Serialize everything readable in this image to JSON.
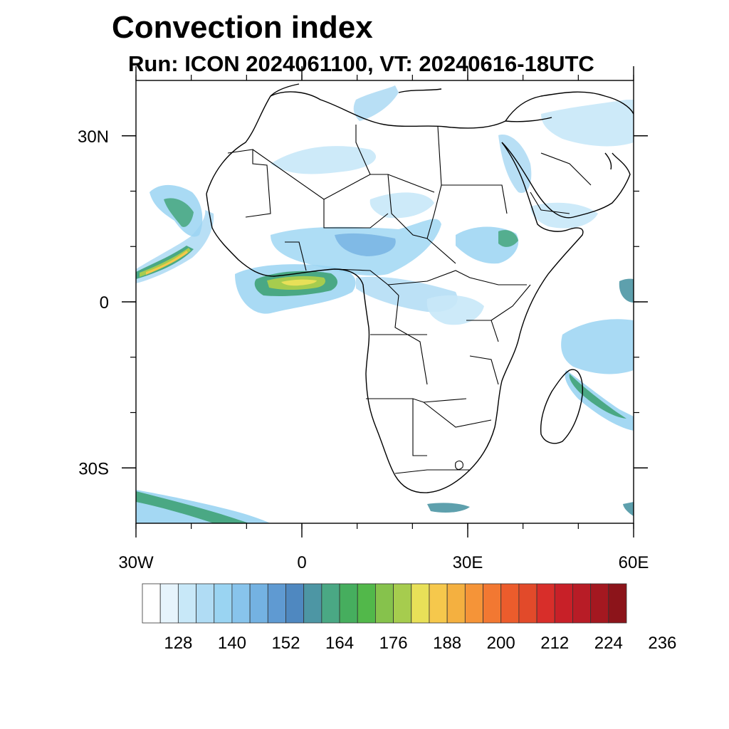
{
  "title": "Convection index",
  "subtitle": "Run: ICON 2024061100,  VT: 20240616-18UTC",
  "map": {
    "region": "Africa and surrounding oceans",
    "lon_range": [
      -30,
      60
    ],
    "lat_range": [
      -40,
      40
    ],
    "x_ticks": [
      {
        "value": -30,
        "label": "30W"
      },
      {
        "value": 0,
        "label": "0"
      },
      {
        "value": 30,
        "label": "30E"
      },
      {
        "value": 60,
        "label": "60E"
      }
    ],
    "y_ticks": [
      {
        "value": 30,
        "label": "30N"
      },
      {
        "value": 0,
        "label": "0"
      },
      {
        "value": -30,
        "label": "30S"
      }
    ],
    "minor_x_step": 10,
    "minor_y_step": 10
  },
  "colorbar": {
    "labels": [
      "128",
      "140",
      "152",
      "164",
      "176",
      "188",
      "200",
      "212",
      "224",
      "236"
    ],
    "colors": [
      "#ffffff",
      "#e6f4fc",
      "#c8e8f8",
      "#b0dcf4",
      "#9ad4f2",
      "#88c4ec",
      "#74b2e2",
      "#5f9ad2",
      "#4f88c0",
      "#4d96a4",
      "#4aa884",
      "#46ae5e",
      "#52b84a",
      "#86c24c",
      "#a6cc4e",
      "#e8e058",
      "#f6c84c",
      "#f4b040",
      "#f59438",
      "#f27832",
      "#ec5c2c",
      "#e24a2a",
      "#d82e2a",
      "#c82028",
      "#b81c26",
      "#a41820",
      "#8c141a"
    ]
  }
}
